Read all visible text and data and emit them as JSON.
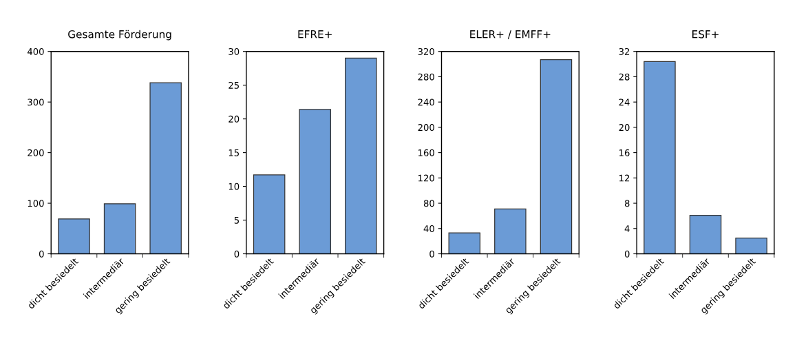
{
  "chart_data": [
    {
      "type": "bar",
      "title": "Gesamte Förderung",
      "categories": [
        "dicht besiedelt",
        "intermediär",
        "gering besiedelt"
      ],
      "values": [
        69,
        99,
        338
      ],
      "color": "#6b9bd6",
      "ylim": [
        0,
        400
      ],
      "yticks": [
        0,
        100,
        200,
        300,
        400
      ],
      "grid": false
    },
    {
      "type": "bar",
      "title": "EFRE+",
      "categories": [
        "dicht besiedelt",
        "intermediär",
        "gering besiedelt"
      ],
      "values": [
        11.7,
        21.4,
        29.0
      ],
      "color": "#6b9bd6",
      "ylim": [
        0,
        30
      ],
      "yticks": [
        0,
        5,
        10,
        15,
        20,
        25,
        30
      ],
      "grid": false
    },
    {
      "type": "bar",
      "title": "ELER+ / EMFF+",
      "categories": [
        "dicht besiedelt",
        "intermediär",
        "gering besiedelt"
      ],
      "values": [
        33,
        71,
        307
      ],
      "color": "#6b9bd6",
      "ylim": [
        0,
        320
      ],
      "yticks": [
        0,
        40,
        80,
        120,
        160,
        200,
        240,
        280,
        320
      ],
      "grid": false
    },
    {
      "type": "bar",
      "title": "ESF+",
      "categories": [
        "dicht besiedelt",
        "intermediär",
        "gering besiedelt"
      ],
      "values": [
        30.4,
        6.1,
        2.5
      ],
      "color": "#6b9bd6",
      "ylim": [
        0,
        32
      ],
      "yticks": [
        0,
        4,
        8,
        12,
        16,
        20,
        24,
        28,
        32
      ],
      "grid": false
    }
  ]
}
